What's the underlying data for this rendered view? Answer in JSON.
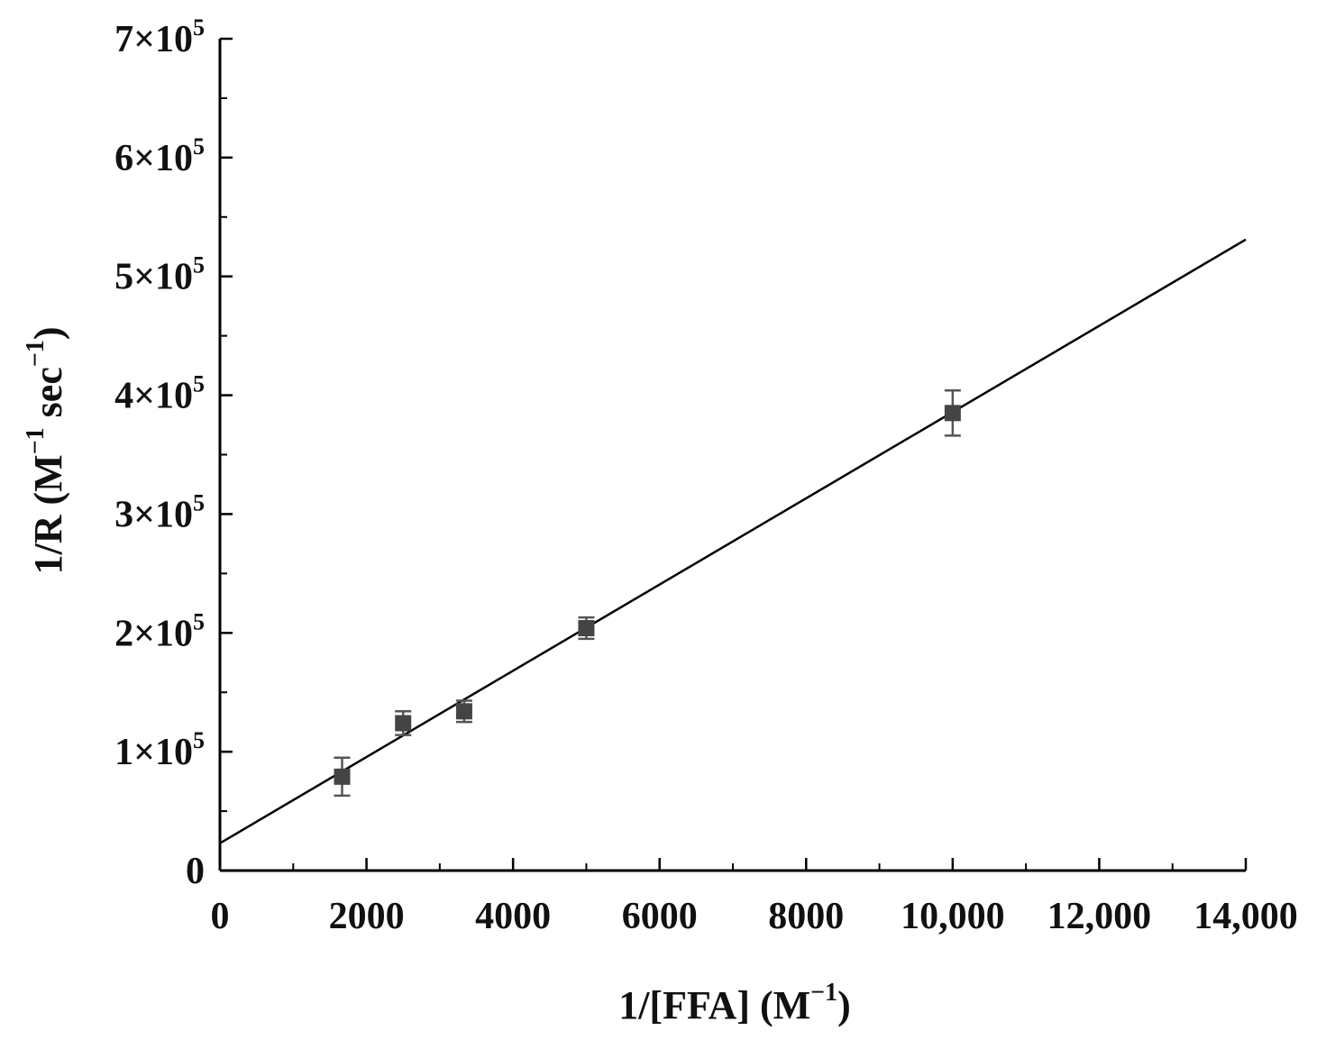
{
  "chart_data": {
    "type": "scatter",
    "title": "",
    "xlabel": {
      "main": "1/[FFA] (M",
      "sup": "−1",
      "tail": ")"
    },
    "ylabel": {
      "main": "1/R (M",
      "sup1": "−1",
      "mid": " sec",
      "sup2": "−1",
      "tail": ")"
    },
    "xlim": [
      0,
      14000
    ],
    "ylim": [
      0,
      700000
    ],
    "x_ticks": [
      {
        "value": 0,
        "label": "0"
      },
      {
        "value": 2000,
        "label": "2000"
      },
      {
        "value": 4000,
        "label": "4000"
      },
      {
        "value": 6000,
        "label": "6000"
      },
      {
        "value": 8000,
        "label": "8000"
      },
      {
        "value": 10000,
        "label": "10,000"
      },
      {
        "value": 12000,
        "label": "12,000"
      },
      {
        "value": 14000,
        "label": "14,000"
      }
    ],
    "y_ticks": [
      {
        "value": 0,
        "base": "0",
        "exp": ""
      },
      {
        "value": 100000,
        "base": "1×10",
        "exp": "5"
      },
      {
        "value": 200000,
        "base": "2×10",
        "exp": "5"
      },
      {
        "value": 300000,
        "base": "3×10",
        "exp": "5"
      },
      {
        "value": 400000,
        "base": "4×10",
        "exp": "5"
      },
      {
        "value": 500000,
        "base": "5×10",
        "exp": "5"
      },
      {
        "value": 600000,
        "base": "6×10",
        "exp": "5"
      },
      {
        "value": 700000,
        "base": "7×10",
        "exp": "5"
      }
    ],
    "series": [
      {
        "points": [
          {
            "x": 1667,
            "y": 79000,
            "err": 16000
          },
          {
            "x": 2500,
            "y": 124000,
            "err": 10000
          },
          {
            "x": 3333,
            "y": 134000,
            "err": 9000
          },
          {
            "x": 5000,
            "y": 204000,
            "err": 9000
          },
          {
            "x": 10000,
            "y": 385000,
            "err": 19000
          }
        ],
        "marker_color": "#444444",
        "error_bar_color": "#555555"
      }
    ],
    "fit_line": {
      "x": [
        0,
        14000
      ],
      "y": [
        23000,
        531000
      ],
      "color": "#000000"
    },
    "grid": false,
    "legend": "none"
  }
}
